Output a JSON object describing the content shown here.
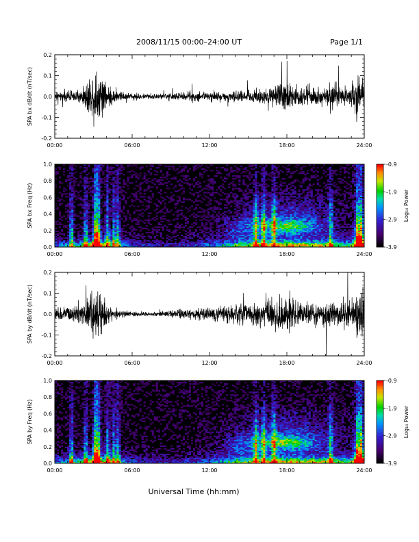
{
  "header": {
    "title": "2008/11/15  00:00–24:00 UT",
    "page": "Page 1/1"
  },
  "xlabel": "Universal Time (hh:mm)",
  "colorbar": {
    "label": "Log₁₀ Power",
    "ticks": [
      "-0.9",
      "-1.9",
      "-2.9",
      "-3.9"
    ],
    "range": [
      -3.9,
      -0.9
    ]
  },
  "chart_data": [
    {
      "type": "line",
      "ylabel": "SPA bx dB/dt (nT/sec)",
      "xlim": [
        0,
        24
      ],
      "ylim": [
        -0.2,
        0.2
      ],
      "xticks": [
        "00:00",
        "06:00",
        "12:00",
        "18:00",
        "24:00"
      ],
      "yticks": [
        "0.2",
        "0.1",
        "0.0",
        "-0.1",
        "-0.2"
      ],
      "series": [
        {
          "x": [
            0,
            1,
            2,
            2.7,
            3,
            3.3,
            3.7,
            4,
            4.5,
            5,
            6,
            7,
            8,
            9,
            10,
            11,
            12,
            13,
            14,
            15,
            16,
            16.5,
            17,
            17.5,
            18,
            18.5,
            19,
            20,
            21,
            21.5,
            22,
            23,
            23.5,
            24
          ],
          "amplitude": [
            0.035,
            0.04,
            0.05,
            0.16,
            0.2,
            0.2,
            0.2,
            0.11,
            0.06,
            0.04,
            0.025,
            0.02,
            0.025,
            0.03,
            0.035,
            0.04,
            0.04,
            0.04,
            0.045,
            0.05,
            0.06,
            0.1,
            0.08,
            0.13,
            0.14,
            0.1,
            0.08,
            0.09,
            0.07,
            0.11,
            0.08,
            0.08,
            0.2,
            0.2
          ]
        }
      ]
    },
    {
      "type": "heatmap",
      "ylabel": "SPA bx Freq (Hz)",
      "xlim": [
        0,
        24
      ],
      "ylim": [
        0,
        1
      ],
      "xticks": [
        "00:00",
        "06:00",
        "12:00",
        "18:00",
        "24:00"
      ],
      "yticks": [
        "1.0",
        "0.8",
        "0.6",
        "0.4",
        "0.2",
        "0.0"
      ],
      "zlim": [
        -3.9,
        -0.9
      ],
      "features": [
        {
          "x": 3.2,
          "y_max": 1.0,
          "log_power": -2.2
        },
        {
          "x": 17.9,
          "y": 0.25,
          "log_power": -1.9
        },
        {
          "x": 23.6,
          "y_max": 1.0,
          "log_power": -2.6
        }
      ]
    },
    {
      "type": "line",
      "ylabel": "SPA by dB/dt (nT/sec)",
      "xlim": [
        0,
        24
      ],
      "ylim": [
        -0.2,
        0.2
      ],
      "xticks": [
        "00:00",
        "06:00",
        "12:00",
        "18:00",
        "24:00"
      ],
      "yticks": [
        "0.2",
        "0.1",
        "0.0",
        "-0.1",
        "-0.2"
      ],
      "series": [
        {
          "x": [
            0,
            1,
            2,
            2.7,
            3,
            3.3,
            3.7,
            4,
            4.5,
            5,
            6,
            7,
            8,
            9,
            10,
            11,
            12,
            13,
            14,
            15,
            16,
            16.5,
            17,
            17.5,
            18,
            18.5,
            19,
            20,
            21,
            21.5,
            22,
            23,
            23.5,
            24
          ],
          "amplitude": [
            0.05,
            0.06,
            0.07,
            0.16,
            0.2,
            0.2,
            0.18,
            0.1,
            0.05,
            0.03,
            0.02,
            0.015,
            0.02,
            0.03,
            0.04,
            0.05,
            0.06,
            0.07,
            0.08,
            0.09,
            0.1,
            0.13,
            0.14,
            0.16,
            0.17,
            0.13,
            0.1,
            0.09,
            0.1,
            0.12,
            0.1,
            0.1,
            0.2,
            0.2
          ]
        }
      ]
    },
    {
      "type": "heatmap",
      "ylabel": "SPA by Freq (Hz)",
      "xlim": [
        0,
        24
      ],
      "ylim": [
        0,
        1
      ],
      "xticks": [
        "00:00",
        "06:00",
        "12:00",
        "18:00",
        "24:00"
      ],
      "yticks": [
        "1.0",
        "0.8",
        "0.6",
        "0.4",
        "0.2",
        "0.0"
      ],
      "zlim": [
        -3.9,
        -0.9
      ],
      "features": [
        {
          "x": 3.2,
          "y_max": 1.0,
          "log_power": -2.0
        },
        {
          "x": 18.0,
          "y": 0.25,
          "log_power": -1.9
        },
        {
          "x": 23.6,
          "y_max": 1.0,
          "log_power": -2.6
        }
      ]
    }
  ]
}
